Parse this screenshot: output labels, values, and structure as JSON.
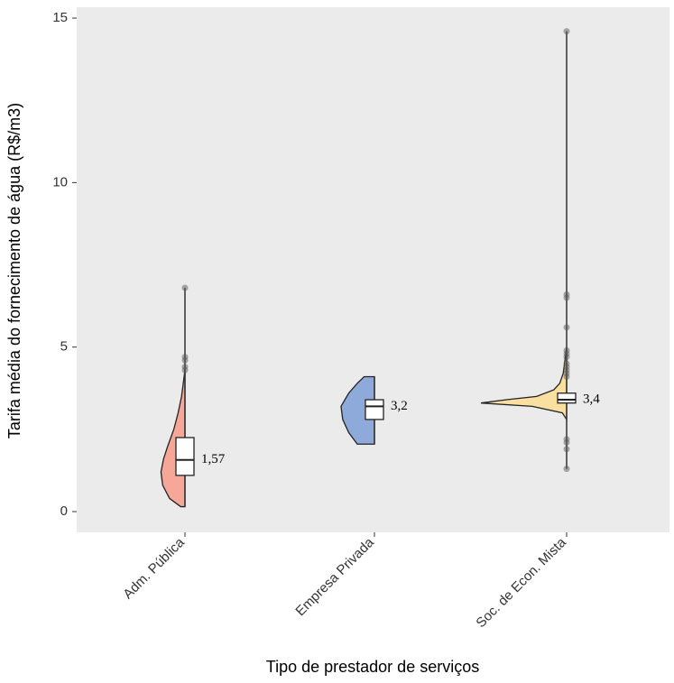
{
  "chart_data": {
    "type": "raincloud",
    "y_label": "Tarifa média do fornecimento de água (R$/m3)",
    "x_label": "Tipo de prestador de serviços",
    "categories": [
      "Adm. Pública",
      "Empresa Privada",
      "Soc. de Econ. Mista"
    ],
    "ylim": [
      -0.63,
      15.33
    ],
    "yticks": [
      0,
      5,
      10,
      15
    ],
    "grid": false,
    "groups": [
      {
        "color": "#f7a797",
        "min": 0.15,
        "q1": 1.1,
        "median": 1.57,
        "q3": 2.25,
        "max": 6.8,
        "median_label": "1,57",
        "outliers": [
          6.8,
          4.7,
          4.6,
          4.4,
          4.3
        ],
        "density_y": [
          0.15,
          0.4,
          0.8,
          1.2,
          1.6,
          2.0,
          2.5,
          3.0,
          3.5,
          4.0,
          4.3
        ],
        "density": [
          0.05,
          0.18,
          0.26,
          0.28,
          0.25,
          0.2,
          0.13,
          0.08,
          0.04,
          0.015,
          0
        ]
      },
      {
        "color": "#8eaadb",
        "min": 2.05,
        "q1": 2.8,
        "median": 3.2,
        "q3": 3.4,
        "max": 4.1,
        "median_label": "3,2",
        "outliers": [],
        "density_y": [
          2.05,
          2.4,
          2.8,
          3.2,
          3.6,
          3.9,
          4.1
        ],
        "density": [
          0.2,
          0.3,
          0.37,
          0.39,
          0.3,
          0.2,
          0.12
        ]
      },
      {
        "color": "#f9e0a0",
        "min": 1.3,
        "q1": 3.3,
        "median": 3.4,
        "q3": 3.6,
        "max": 14.6,
        "median_label": "3,4",
        "outliers": [
          14.6,
          6.6,
          6.5,
          5.6,
          4.9,
          4.8,
          4.7,
          4.5,
          4.4,
          4.3,
          4.2,
          4.1,
          2.2,
          2.1,
          1.9,
          1.3
        ],
        "density_y": [
          2.8,
          3.0,
          3.2,
          3.3,
          3.4,
          3.5,
          3.7,
          3.9,
          4.2,
          4.6,
          5.0
        ],
        "density": [
          0,
          0.05,
          0.4,
          1.0,
          0.7,
          0.35,
          0.15,
          0.08,
          0.04,
          0.02,
          0
        ]
      }
    ]
  }
}
